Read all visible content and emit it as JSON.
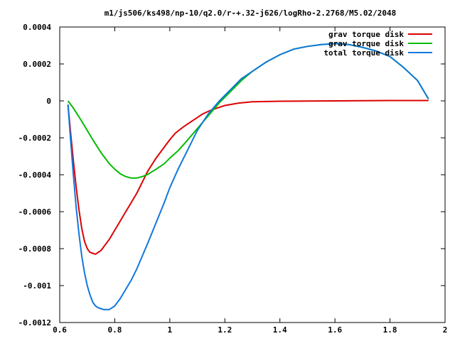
{
  "chart_data": {
    "type": "line",
    "title": "m1/js506/ks498/np-10/q2.0/r-+.32-j626/logRho-2.2768/M5.02/2048",
    "xlabel": "",
    "ylabel": "",
    "xlim": [
      0.6,
      2.0
    ],
    "ylim": [
      -0.0012,
      0.0004
    ],
    "x_ticks": [
      {
        "value": 0.6,
        "label": "0.6"
      },
      {
        "value": 0.8,
        "label": "0.8"
      },
      {
        "value": 1.0,
        "label": "1"
      },
      {
        "value": 1.2,
        "label": "1.2"
      },
      {
        "value": 1.4,
        "label": "1.4"
      },
      {
        "value": 1.6,
        "label": "1.6"
      },
      {
        "value": 1.8,
        "label": "1.8"
      },
      {
        "value": 2.0,
        "label": "2"
      }
    ],
    "y_ticks": [
      {
        "value": 0.0004,
        "label": "0.0004"
      },
      {
        "value": 0.0002,
        "label": "0.0002"
      },
      {
        "value": 0.0,
        "label": "0"
      },
      {
        "value": -0.0002,
        "label": "-0.0002"
      },
      {
        "value": -0.0004,
        "label": "-0.0004"
      },
      {
        "value": -0.0006,
        "label": "-0.0006"
      },
      {
        "value": -0.0008,
        "label": "-0.0008"
      },
      {
        "value": -0.001,
        "label": "-0.001"
      },
      {
        "value": -0.0012,
        "label": "-0.0012"
      }
    ],
    "grid": false,
    "legend_position": "top-right",
    "series": [
      {
        "name": "grav torque disk",
        "color": "#dd0000",
        "x": [
          0.63,
          0.64,
          0.65,
          0.66,
          0.67,
          0.68,
          0.69,
          0.7,
          0.71,
          0.72,
          0.73,
          0.74,
          0.75,
          0.76,
          0.78,
          0.8,
          0.82,
          0.84,
          0.86,
          0.88,
          0.9,
          0.92,
          0.95,
          0.98,
          1.0,
          1.02,
          1.05,
          1.08,
          1.1,
          1.12,
          1.15,
          1.18,
          1.2,
          1.25,
          1.3,
          1.4,
          1.5,
          1.6,
          1.7,
          1.8,
          1.9,
          1.94
        ],
        "y": [
          -2e-05,
          -0.00018,
          -0.00033,
          -0.00047,
          -0.00059,
          -0.00069,
          -0.00076,
          -0.0008,
          -0.00082,
          -0.000825,
          -0.00083,
          -0.00082,
          -0.00081,
          -0.00079,
          -0.00075,
          -0.0007,
          -0.00065,
          -0.0006,
          -0.00055,
          -0.0005,
          -0.00044,
          -0.00038,
          -0.00031,
          -0.00025,
          -0.00021,
          -0.000175,
          -0.00014,
          -0.00011,
          -9e-05,
          -7e-05,
          -5e-05,
          -3.5e-05,
          -2.5e-05,
          -1.2e-05,
          -5e-06,
          -2e-06,
          -1e-06,
          0.0,
          1e-06,
          2e-06,
          2e-06,
          2e-06
        ]
      },
      {
        "name": "grav torque disk",
        "color": "#00bb00",
        "x": [
          0.63,
          0.65,
          0.68,
          0.7,
          0.72,
          0.75,
          0.78,
          0.8,
          0.82,
          0.84,
          0.86,
          0.88,
          0.9,
          0.92,
          0.95,
          0.98,
          1.0,
          1.03,
          1.06,
          1.1,
          1.14,
          1.18,
          1.22,
          1.26,
          1.3,
          1.35,
          1.4,
          1.45,
          1.5,
          1.55,
          1.6,
          1.65,
          1.7,
          1.75,
          1.8,
          1.85,
          1.9,
          1.94
        ],
        "y": [
          0.0,
          -4e-05,
          -0.00011,
          -0.00016,
          -0.00021,
          -0.00028,
          -0.00034,
          -0.00037,
          -0.000395,
          -0.00041,
          -0.000418,
          -0.000418,
          -0.00041,
          -0.000398,
          -0.00037,
          -0.00034,
          -0.00031,
          -0.00027,
          -0.00022,
          -0.00015,
          -8e-05,
          -1e-05,
          5e-05,
          0.00011,
          0.00016,
          0.00021,
          0.00025,
          0.00028,
          0.000295,
          0.000305,
          0.00031,
          0.000305,
          0.00029,
          0.00027,
          0.00024,
          0.00018,
          0.00011,
          1e-05
        ]
      },
      {
        "name": "total torque disk",
        "color": "#1177dd",
        "x": [
          0.63,
          0.64,
          0.65,
          0.66,
          0.67,
          0.68,
          0.69,
          0.7,
          0.71,
          0.72,
          0.73,
          0.74,
          0.75,
          0.76,
          0.77,
          0.78,
          0.79,
          0.8,
          0.82,
          0.84,
          0.86,
          0.88,
          0.9,
          0.92,
          0.95,
          0.98,
          1.0,
          1.03,
          1.06,
          1.1,
          1.14,
          1.18,
          1.22,
          1.26,
          1.3,
          1.35,
          1.4,
          1.45,
          1.5,
          1.55,
          1.6,
          1.65,
          1.7,
          1.75,
          1.8,
          1.85,
          1.9,
          1.94
        ],
        "y": [
          -2e-05,
          -0.00022,
          -0.00041,
          -0.00058,
          -0.00072,
          -0.00084,
          -0.00093,
          -0.001,
          -0.00105,
          -0.00109,
          -0.00111,
          -0.00112,
          -0.001125,
          -0.00113,
          -0.00113,
          -0.00113,
          -0.00112,
          -0.00111,
          -0.00107,
          -0.00102,
          -0.00097,
          -0.00091,
          -0.00084,
          -0.00077,
          -0.00066,
          -0.00055,
          -0.00047,
          -0.00037,
          -0.00028,
          -0.00016,
          -7e-05,
          0.0,
          6e-05,
          0.00012,
          0.00016,
          0.00021,
          0.00025,
          0.00028,
          0.000295,
          0.000305,
          0.00031,
          0.000305,
          0.00029,
          0.00027,
          0.00024,
          0.00018,
          0.00011,
          1e-05
        ]
      }
    ]
  }
}
